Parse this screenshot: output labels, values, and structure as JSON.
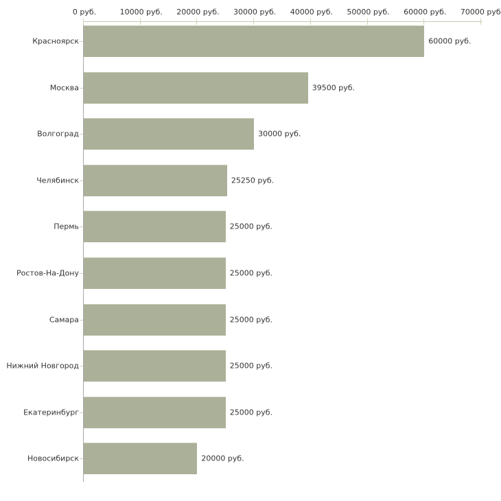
{
  "chart_data": {
    "type": "bar",
    "orientation": "horizontal",
    "title": "",
    "categories": [
      "Красноярск",
      "Москва",
      "Волгоград",
      "Челябинск",
      "Пермь",
      "Ростов-На-Дону",
      "Самара",
      "Нижний Новгород",
      "Екатеринбург",
      "Новосибирск"
    ],
    "values": [
      60000,
      39500,
      30000,
      25250,
      25000,
      25000,
      25000,
      25000,
      25000,
      20000
    ],
    "value_labels": [
      "60000 руб.",
      "39500 руб.",
      "30000 руб.",
      "25250 руб.",
      "25000 руб.",
      "25000 руб.",
      "25000 руб.",
      "25000 руб.",
      "25000 руб.",
      "20000 руб."
    ],
    "unit": "руб.",
    "x_axis": {
      "position": "top",
      "min": 0,
      "max": 70000,
      "ticks": [
        0,
        10000,
        20000,
        30000,
        40000,
        50000,
        60000,
        70000
      ],
      "tick_labels": [
        "0 руб.",
        "10000 руб.",
        "20000 руб.",
        "30000 руб.",
        "40000 руб.",
        "50000 руб.",
        "60000 руб.",
        "70000 руб."
      ]
    },
    "grid": false,
    "legend": null,
    "colors": {
      "background": "#ffffff",
      "bar_fill": "#abb199",
      "bar_top_highlight": "#c7ccb9",
      "vertical_axis": "#a8a8a8",
      "horizontal_axis": "#c9c9b2",
      "tick": "#d2d2ba",
      "text": "#333333"
    }
  }
}
